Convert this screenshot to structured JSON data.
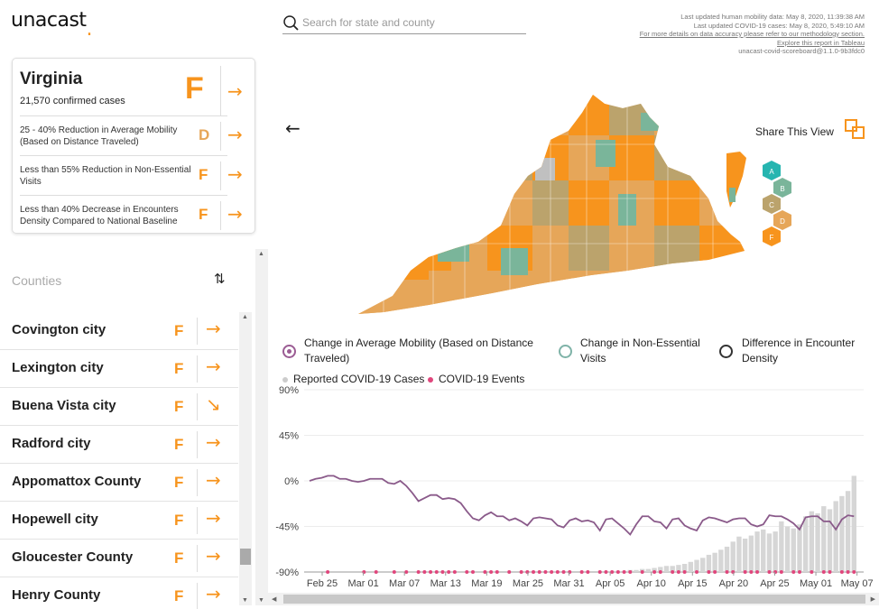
{
  "brand": {
    "name": "unacast",
    "dot": ".",
    "accent": "#f7941d"
  },
  "search": {
    "placeholder": "Search for state and county"
  },
  "meta": {
    "line1": "Last updated human mobility data: May 8, 2020, 11:39:38 AM",
    "line2": "Last updated COVID-19 cases: May 8, 2020, 5:49:10 AM",
    "line3": "For more details on data accuracy please refer to our methodology section.",
    "line4": "Explore this report in Tableau",
    "line5": "unacast-covid-scoreboard@1.1.0-9b3fdc0"
  },
  "state": {
    "name": "Virginia",
    "cases": "21,570 confirmed cases",
    "grade": "F",
    "metrics": [
      {
        "text": "25 - 40% Reduction in Average Mobility (Based on Distance Traveled)",
        "grade": "D",
        "color": "#e6a659"
      },
      {
        "text": "Less than 55% Reduction in Non-Essential Visits",
        "grade": "F",
        "color": "#f7941d"
      },
      {
        "text": "Less than 40% Decrease in Encounters Density Compared to National Baseline",
        "grade": "F",
        "color": "#f7941d"
      }
    ]
  },
  "counties": {
    "header": "Counties",
    "items": [
      {
        "name": "Covington city",
        "grade": "F",
        "trend": "→"
      },
      {
        "name": "Lexington city",
        "grade": "F",
        "trend": "→"
      },
      {
        "name": "Buena Vista city",
        "grade": "F",
        "trend": "↘"
      },
      {
        "name": "Radford city",
        "grade": "F",
        "trend": "→"
      },
      {
        "name": "Appomattox County",
        "grade": "F",
        "trend": "→"
      },
      {
        "name": "Hopewell city",
        "grade": "F",
        "trend": "→"
      },
      {
        "name": "Gloucester County",
        "grade": "F",
        "trend": "→"
      },
      {
        "name": "Henry County",
        "grade": "F",
        "trend": "→"
      }
    ]
  },
  "share": {
    "label": "Share This View"
  },
  "grade_legend": [
    {
      "grade": "A",
      "color": "#26b5b0"
    },
    {
      "grade": "B",
      "color": "#7ab59a"
    },
    {
      "grade": "C",
      "color": "#bba36c"
    },
    {
      "grade": "D",
      "color": "#e6a659"
    },
    {
      "grade": "F",
      "color": "#f7941d"
    }
  ],
  "metric_options": [
    {
      "label": "Change in Average Mobility (Based on Distance Traveled)",
      "selected": true,
      "color": "#9b5c94"
    },
    {
      "label": "Change in Non-Essential Visits",
      "selected": false,
      "color": "#7fb3a8"
    },
    {
      "label": "Difference in Encounter Density",
      "selected": false,
      "color": "#333333"
    }
  ],
  "series_legend": [
    {
      "label": "Reported COVID-19 Cases",
      "color": "#cccccc"
    },
    {
      "label": "COVID-19 Events",
      "color": "#e0467c"
    }
  ],
  "chart_data": {
    "type": "bar+line",
    "y_ticks": [
      "90%",
      "45%",
      "0%",
      "-45%",
      "-90%"
    ],
    "ylim": [
      -90,
      90
    ],
    "x_labels": [
      "Feb 25",
      "Mar 01",
      "Mar 07",
      "Mar 13",
      "Mar 19",
      "Mar 25",
      "Mar 31",
      "Apr 05",
      "Apr 10",
      "Apr 15",
      "Apr 20",
      "Apr 25",
      "May 01",
      "May 07"
    ],
    "mobility_series": {
      "name": "Change in Average Mobility (Based on Distance Traveled)",
      "color": "#8a5a8a",
      "values": [
        0,
        2,
        3,
        5,
        5,
        2,
        2,
        0,
        -1,
        0,
        2,
        2,
        2,
        -2,
        -3,
        0,
        -5,
        -12,
        -20,
        -17,
        -14,
        -14,
        -18,
        -17,
        -18,
        -22,
        -30,
        -37,
        -39,
        -34,
        -31,
        -35,
        -35,
        -39,
        -37,
        -40,
        -44,
        -37,
        -36,
        -37,
        -38,
        -44,
        -46,
        -39,
        -37,
        -40,
        -39,
        -41,
        -49,
        -38,
        -37,
        -42,
        -47,
        -53,
        -43,
        -35,
        -35,
        -40,
        -41,
        -47,
        -38,
        -37,
        -44,
        -47,
        -49,
        -39,
        -36,
        -37,
        -39,
        -41,
        -38,
        -37,
        -37,
        -43,
        -45,
        -43,
        -34,
        -35,
        -35,
        -38,
        -42,
        -48,
        -36,
        -35,
        -35,
        -40,
        -40,
        -48,
        -38,
        -34,
        -35
      ]
    },
    "cases_series": {
      "name": "Reported COVID-19 Cases",
      "color": "#d6d6d6",
      "values": [
        0,
        0,
        0,
        0,
        0,
        0,
        0,
        0,
        0,
        0,
        0,
        0,
        0,
        0,
        0,
        0,
        0,
        0,
        0,
        0,
        0,
        0,
        0,
        0,
        0,
        0,
        0,
        0,
        0,
        0,
        0,
        0,
        0,
        0,
        0,
        0,
        0,
        0,
        0,
        0,
        0,
        0,
        0,
        0,
        0,
        0,
        0,
        0,
        0,
        0,
        0,
        1,
        1,
        2,
        2,
        3,
        3,
        4,
        5,
        6,
        6,
        7,
        8,
        10,
        12,
        14,
        17,
        19,
        22,
        25,
        30,
        35,
        33,
        36,
        40,
        42,
        38,
        40,
        50,
        45,
        43,
        47,
        55,
        60,
        58,
        65,
        62,
        70,
        75,
        80,
        95
      ]
    },
    "events_series": {
      "name": "COVID-19 Events",
      "color": "#e0467c",
      "values": [
        0,
        0,
        0,
        1,
        0,
        0,
        0,
        0,
        0,
        1,
        0,
        1,
        0,
        0,
        1,
        0,
        1,
        0,
        1,
        1,
        1,
        1,
        1,
        1,
        1,
        0,
        1,
        1,
        0,
        1,
        1,
        1,
        0,
        1,
        0,
        1,
        1,
        1,
        1,
        1,
        1,
        1,
        1,
        1,
        0,
        1,
        1,
        0,
        1,
        1,
        1,
        1,
        1,
        1,
        0,
        1,
        0,
        1,
        1,
        0,
        1,
        1,
        1,
        0,
        1,
        0,
        1,
        1,
        0,
        1,
        1,
        0,
        1,
        1,
        1,
        0,
        1,
        1,
        1,
        0,
        1,
        1,
        0,
        1,
        0,
        1,
        1,
        0,
        1,
        1,
        1
      ]
    }
  }
}
